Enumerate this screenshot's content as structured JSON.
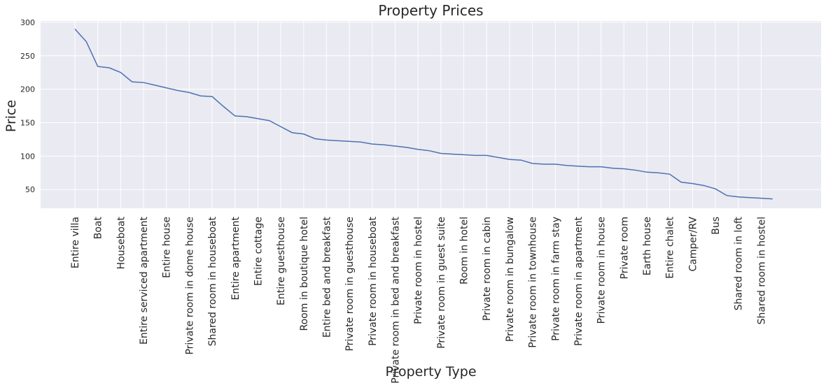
{
  "chart_data": {
    "type": "line",
    "title": "Property Prices",
    "xlabel": "Property Type",
    "ylabel": "Price",
    "ylim": [
      22,
      302
    ],
    "yticks": [
      50,
      100,
      150,
      200,
      250,
      300
    ],
    "grid": true,
    "line_color": "#4c72b0",
    "background_color": "#eaeaf2",
    "grid_color": "#ffffff",
    "x_count": 62,
    "x_labeled_every": 2,
    "tick_labels": [
      "Entire villa",
      "Boat",
      "Houseboat",
      "Entire serviced apartment",
      "Entire house",
      "Private room in dome house",
      "Shared room in houseboat",
      "Entire apartment",
      "Entire cottage",
      "Entire guesthouse",
      "Room in boutique hotel",
      "Entire bed and breakfast",
      "Private room in guesthouse",
      "Private room in houseboat",
      "Private room in bed and breakfast",
      "Private room in hostel",
      "Private room in guest suite",
      "Room in hotel",
      "Private room in cabin",
      "Private room in bungalow",
      "Private room in townhouse",
      "Private room in farm stay",
      "Private room in apartment",
      "Private room in house",
      "Private room",
      "Earth house",
      "Entire chalet",
      "Camper/RV",
      "Bus",
      "Shared room in loft",
      "Shared room in hostel"
    ],
    "values": [
      290,
      271,
      234,
      232,
      225,
      211,
      210,
      206,
      202,
      198,
      195,
      190,
      189,
      174,
      160,
      159,
      156,
      153,
      144,
      135,
      133,
      126,
      124,
      123,
      122,
      121,
      118,
      117,
      115,
      113,
      110,
      108,
      104,
      103,
      102,
      101,
      101,
      98,
      95,
      94,
      89,
      88,
      88,
      86,
      85,
      84,
      84,
      82,
      81,
      79,
      76,
      75,
      73,
      61,
      59,
      56,
      51,
      41,
      39,
      38,
      37,
      36
    ]
  }
}
